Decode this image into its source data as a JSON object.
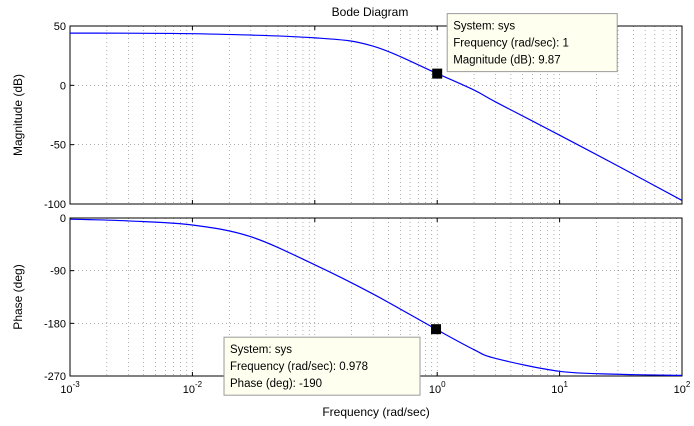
{
  "chart_data": [
    {
      "type": "line",
      "title": "Bode Diagram",
      "ylabel": "Magnitude (dB)",
      "xscale": "log",
      "xlim": [
        0.001,
        100
      ],
      "ylim": [
        -100,
        50
      ],
      "yticks": [
        50,
        0,
        -50,
        -100
      ],
      "grid": "on",
      "series": [
        {
          "name": "sys",
          "color": "#0000ff",
          "x": [
            0.001,
            0.01,
            0.1,
            0.3,
            1,
            2,
            3,
            10,
            30,
            100
          ],
          "y": [
            44,
            43.5,
            40,
            33,
            9.87,
            -4,
            -14,
            -42,
            -68,
            -97
          ]
        }
      ],
      "datatip": {
        "x": 1,
        "y": 9.87,
        "lines": [
          "System: sys",
          "Frequency (rad/sec): 1",
          "Magnitude (dB): 9.87"
        ]
      }
    },
    {
      "type": "line",
      "ylabel": "Phase (deg)",
      "xlabel": "Frequency  (rad/sec)",
      "xscale": "log",
      "xlim": [
        0.001,
        100
      ],
      "ylim": [
        -270,
        0
      ],
      "yticks": [
        0,
        -90,
        -180,
        -270
      ],
      "xticks": [
        "10^-3",
        "10^-2",
        "10^-1",
        "10^0",
        "10^1",
        "10^2"
      ],
      "grid": "on",
      "series": [
        {
          "name": "sys",
          "color": "#0000ff",
          "x": [
            0.001,
            0.003,
            0.01,
            0.03,
            0.1,
            0.3,
            0.978,
            2,
            3,
            10,
            30,
            100
          ],
          "y": [
            -2,
            -5,
            -12,
            -32,
            -80,
            -130,
            -190,
            -225,
            -240,
            -262,
            -267,
            -269
          ]
        }
      ],
      "datatip": {
        "x": 0.978,
        "y": -190,
        "lines": [
          "System: sys",
          "Frequency (rad/sec): 0.978",
          "Phase (deg): -190"
        ]
      }
    }
  ]
}
